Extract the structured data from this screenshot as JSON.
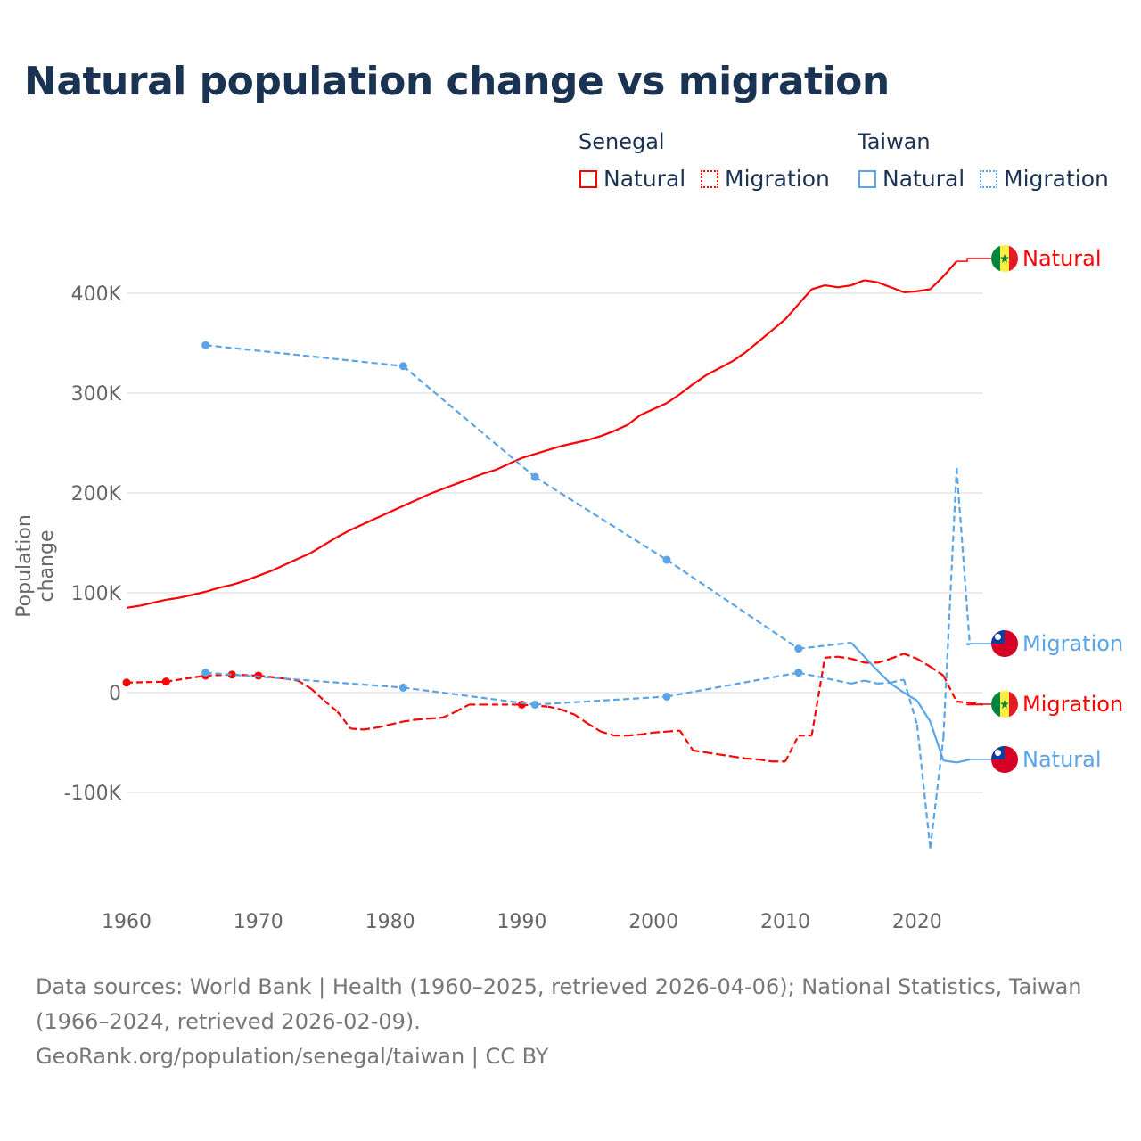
{
  "title": "Natural population change vs migration",
  "legend": {
    "groups": [
      {
        "name": "Senegal",
        "items": [
          {
            "label": "Natural",
            "style": "solid"
          },
          {
            "label": "Migration",
            "style": "dotted"
          }
        ],
        "color": "#ff0000"
      },
      {
        "name": "Taiwan",
        "items": [
          {
            "label": "Natural",
            "style": "solid"
          },
          {
            "label": "Migration",
            "style": "dotted"
          }
        ],
        "color": "#5ba4e6"
      }
    ]
  },
  "footer": {
    "sources": "Data sources: World Bank | Health (1960–2025, retrieved 2026-04-06); National Statistics, Taiwan (1966–2024, retrieved 2026-02-09).",
    "credit": "GeoRank.org/population/senegal/taiwan | CC BY"
  },
  "chart_data": {
    "type": "line",
    "title": "Natural population change vs migration",
    "xlabel": "",
    "ylabel": "Population change",
    "xlim": [
      1960,
      2025
    ],
    "ylim": [
      -200000,
      450000
    ],
    "x_ticks": [
      1960,
      1970,
      1980,
      1990,
      2000,
      2010,
      2020
    ],
    "y_ticks": [
      {
        "v": -100000,
        "label": "-100K"
      },
      {
        "v": 0,
        "label": "0"
      },
      {
        "v": 100000,
        "label": "100K"
      },
      {
        "v": 200000,
        "label": "200K"
      },
      {
        "v": 300000,
        "label": "300K"
      },
      {
        "v": 400000,
        "label": "400K"
      }
    ],
    "grid": true,
    "series": [
      {
        "name": "Senegal Natural",
        "country": "Senegal",
        "kind": "natural",
        "end_label": "Natural",
        "color": "#ff0000",
        "flag": "senegal",
        "x": [
          1960,
          1961,
          1962,
          1963,
          1964,
          1965,
          1966,
          1967,
          1968,
          1969,
          1970,
          1971,
          1972,
          1973,
          1974,
          1975,
          1976,
          1977,
          1978,
          1979,
          1980,
          1981,
          1982,
          1983,
          1984,
          1985,
          1986,
          1987,
          1988,
          1989,
          1990,
          1991,
          1992,
          1993,
          1994,
          1995,
          1996,
          1997,
          1998,
          1999,
          2000,
          2001,
          2002,
          2003,
          2004,
          2005,
          2006,
          2007,
          2008,
          2009,
          2010,
          2011,
          2012,
          2013,
          2014,
          2015,
          2016,
          2017,
          2018,
          2019,
          2020,
          2021,
          2022,
          2023
        ],
        "y": [
          85000,
          87000,
          90000,
          93000,
          95000,
          98000,
          101000,
          105000,
          108000,
          112000,
          117000,
          122000,
          128000,
          134000,
          140000,
          148000,
          156000,
          163000,
          169000,
          175000,
          181000,
          187000,
          193000,
          199000,
          204000,
          209000,
          214000,
          219000,
          223000,
          229000,
          235000,
          239000,
          243000,
          247000,
          250000,
          253000,
          257000,
          262000,
          268000,
          278000,
          284000,
          290000,
          299000,
          309000,
          318000,
          325000,
          332000,
          341000,
          352000,
          363000,
          374000,
          389000,
          404000,
          408000,
          406000,
          408000,
          413000,
          411000,
          406000,
          401000,
          402000,
          404000,
          417000,
          432000
        ]
      },
      {
        "name": "Senegal Migration",
        "country": "Senegal",
        "kind": "migration",
        "end_label": "Migration",
        "color": "#ff0000",
        "flag": "senegal",
        "x": [
          1960,
          1963,
          1966,
          1968,
          1970,
          1972,
          1973,
          1974,
          1975,
          1976,
          1977,
          1978,
          1979,
          1980,
          1981,
          1982,
          1983,
          1984,
          1985,
          1986,
          1987,
          1990,
          1992,
          1993,
          1994,
          1995,
          1996,
          1997,
          1998,
          1999,
          2000,
          2001,
          2002,
          2003,
          2004,
          2005,
          2006,
          2007,
          2008,
          2009,
          2010,
          2011,
          2012,
          2013,
          2014,
          2015,
          2016,
          2017,
          2018,
          2019,
          2020,
          2021,
          2022,
          2023,
          2024,
          2025
        ],
        "y": [
          10000,
          11000,
          17000,
          18000,
          17000,
          14000,
          12000,
          4000,
          -8000,
          -19000,
          -36000,
          -37000,
          -35000,
          -32000,
          -29000,
          -27000,
          -26000,
          -25000,
          -19000,
          -12000,
          -12000,
          -12000,
          -14000,
          -17000,
          -22000,
          -31000,
          -39000,
          -43000,
          -43000,
          -42000,
          -40000,
          -39000,
          -38000,
          -58000,
          -60000,
          -62000,
          -64000,
          -66000,
          -67000,
          -69000,
          -69000,
          -43000,
          -43000,
          35000,
          36000,
          34000,
          30000,
          30000,
          34000,
          39000,
          34000,
          26000,
          17000,
          -9000,
          -10000,
          -12000
        ]
      },
      {
        "name": "Taiwan Natural",
        "country": "Taiwan",
        "kind": "natural",
        "end_label": "Natural",
        "color": "#5ba4e6",
        "flag": "taiwan",
        "x": [
          1966,
          1981,
          1991,
          2001,
          2011,
          2015,
          2016,
          2017,
          2018,
          2019,
          2020,
          2021,
          2022,
          2023,
          2024
        ],
        "y": [
          348000,
          327000,
          216000,
          133000,
          44000,
          50000,
          36000,
          22000,
          9000,
          0,
          -8000,
          -29000,
          -68000,
          -70000,
          -67000
        ]
      },
      {
        "name": "Taiwan Migration",
        "country": "Taiwan",
        "kind": "migration",
        "end_label": "Migration",
        "color": "#5ba4e6",
        "flag": "taiwan",
        "x": [
          1966,
          1981,
          1991,
          2001,
          2011,
          2015,
          2016,
          2017,
          2018,
          2019,
          2020,
          2021,
          2022,
          2023,
          2024
        ],
        "y": [
          20000,
          5000,
          -12000,
          -4000,
          20000,
          9000,
          12000,
          9000,
          10000,
          13000,
          -32000,
          -156000,
          -45000,
          225000,
          48000
        ]
      }
    ]
  }
}
